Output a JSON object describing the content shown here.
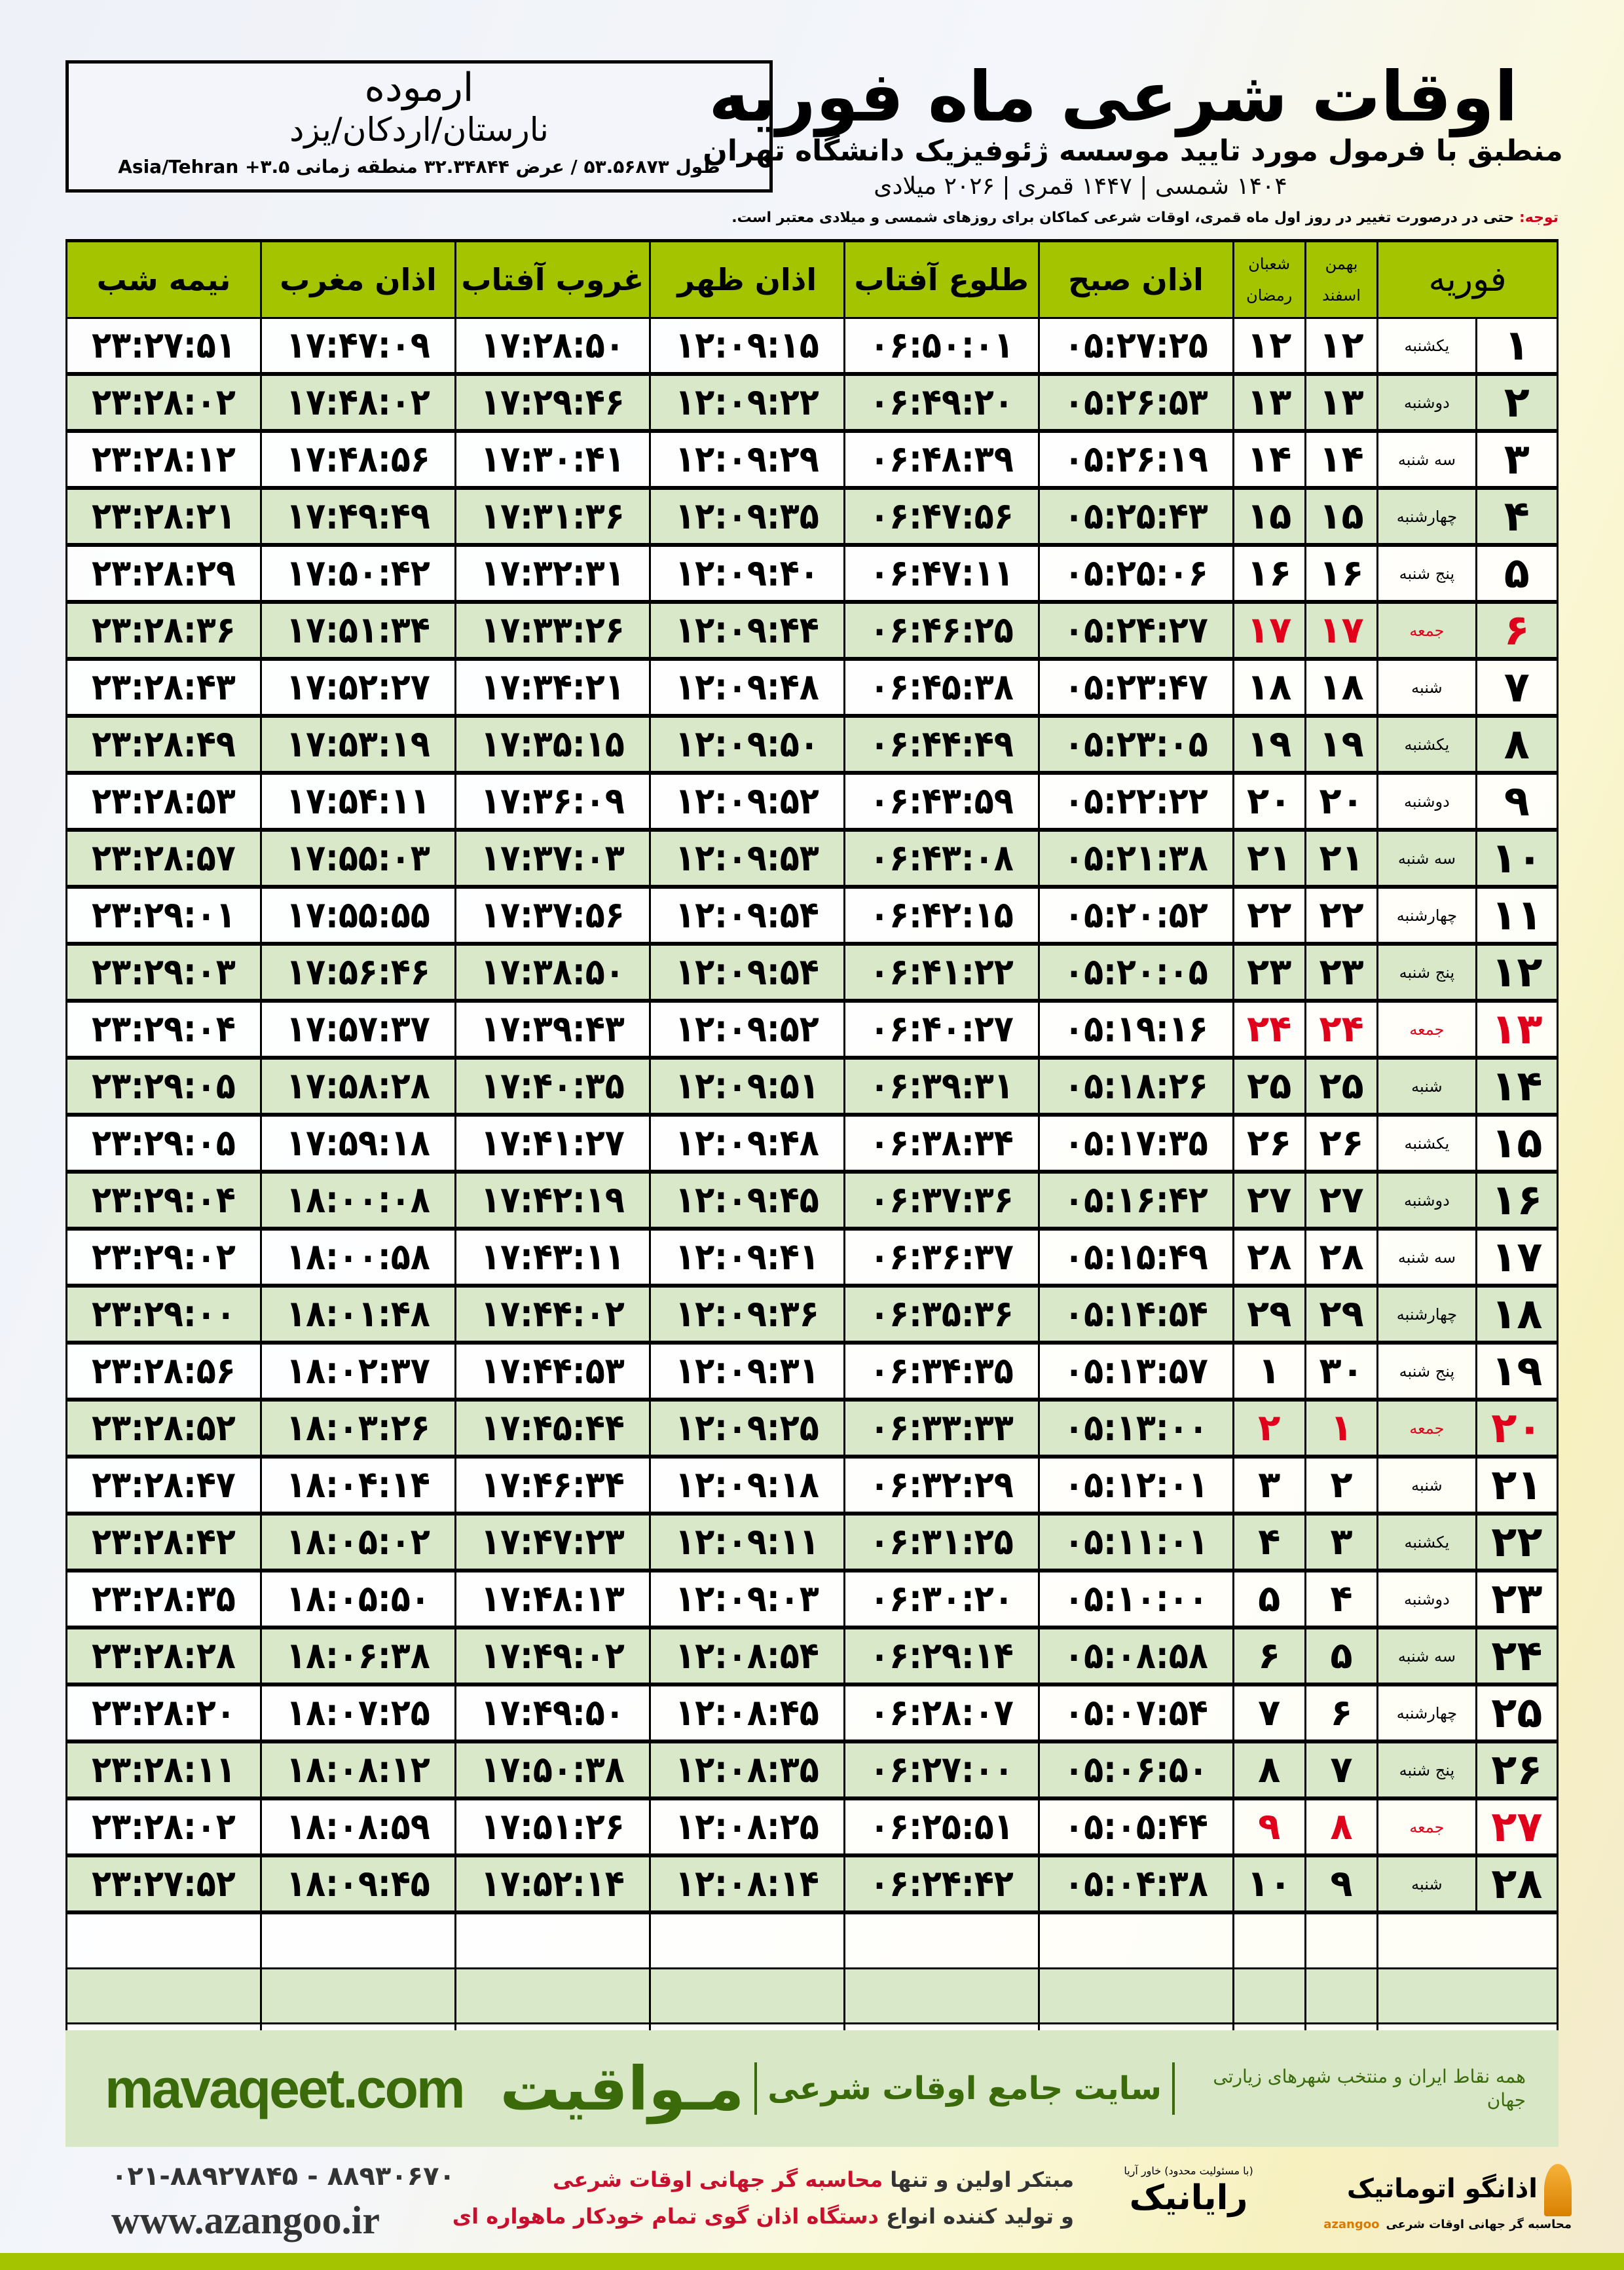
{
  "location": {
    "name": "ارموده",
    "path": "نارستان/اردکان/یزد",
    "coordinates": "طول ۵۳.۵۶۸۷۳ / عرض ۳۲.۳۴۸۴۴ منطقه زمانی ۳.۵+ Asia/Tehran"
  },
  "header": {
    "title": "اوقات شرعی ماه فوریه",
    "subtitle": "منطبق با فرمول مورد تایید موسسه ژئوفیزیک دانشگاه تهران",
    "years": "۱۴۰۴ شمسی | ۱۴۴۷ قمری | ۲۰۲۶ میلادی"
  },
  "note": {
    "label": "توجه:",
    "text": " حتی در درصورت تغییر در روز اول ماه قمری، اوقات شرعی کماکان برای روزهای شمسی و میلادی معتبر است."
  },
  "colors": {
    "header_green": "#a4c400",
    "row_green": "#d9e8c8",
    "holiday_red": "#e0001b",
    "brand_green": "#3a6a0a"
  },
  "table": {
    "columns": {
      "month": "فوریه",
      "solar_top": "بهمن",
      "solar_bottom": "اسفند",
      "lunar_top": "شعبان",
      "lunar_bottom": "رمضان",
      "fajr": "اذان صبح",
      "sunrise": "طلوع آفتاب",
      "dhuhr": "اذان ظهر",
      "sunset": "غروب آفتاب",
      "maghrib": "اذان مغرب",
      "midnight": "نیمه شب"
    },
    "holiday_weekday": "جمعه",
    "rows": [
      {
        "d": "۱",
        "w": "یکشنبه",
        "s": "۱۲",
        "q": "۱۲",
        "t": [
          "۰۵:۲۷:۲۵",
          "۰۶:۵۰:۰۱",
          "۱۲:۰۹:۱۵",
          "۱۷:۲۸:۵۰",
          "۱۷:۴۷:۰۹",
          "۲۳:۲۷:۵۱"
        ]
      },
      {
        "d": "۲",
        "w": "دوشنبه",
        "s": "۱۳",
        "q": "۱۳",
        "t": [
          "۰۵:۲۶:۵۳",
          "۰۶:۴۹:۲۰",
          "۱۲:۰۹:۲۲",
          "۱۷:۲۹:۴۶",
          "۱۷:۴۸:۰۲",
          "۲۳:۲۸:۰۲"
        ]
      },
      {
        "d": "۳",
        "w": "سه شنبه",
        "s": "۱۴",
        "q": "۱۴",
        "t": [
          "۰۵:۲۶:۱۹",
          "۰۶:۴۸:۳۹",
          "۱۲:۰۹:۲۹",
          "۱۷:۳۰:۴۱",
          "۱۷:۴۸:۵۶",
          "۲۳:۲۸:۱۲"
        ]
      },
      {
        "d": "۴",
        "w": "چهارشنبه",
        "s": "۱۵",
        "q": "۱۵",
        "t": [
          "۰۵:۲۵:۴۳",
          "۰۶:۴۷:۵۶",
          "۱۲:۰۹:۳۵",
          "۱۷:۳۱:۳۶",
          "۱۷:۴۹:۴۹",
          "۲۳:۲۸:۲۱"
        ]
      },
      {
        "d": "۵",
        "w": "پنج شنبه",
        "s": "۱۶",
        "q": "۱۶",
        "t": [
          "۰۵:۲۵:۰۶",
          "۰۶:۴۷:۱۱",
          "۱۲:۰۹:۴۰",
          "۱۷:۳۲:۳۱",
          "۱۷:۵۰:۴۲",
          "۲۳:۲۸:۲۹"
        ]
      },
      {
        "d": "۶",
        "w": "جمعه",
        "s": "۱۷",
        "q": "۱۷",
        "t": [
          "۰۵:۲۴:۲۷",
          "۰۶:۴۶:۲۵",
          "۱۲:۰۹:۴۴",
          "۱۷:۳۳:۲۶",
          "۱۷:۵۱:۳۴",
          "۲۳:۲۸:۳۶"
        ]
      },
      {
        "d": "۷",
        "w": "شنبه",
        "s": "۱۸",
        "q": "۱۸",
        "t": [
          "۰۵:۲۳:۴۷",
          "۰۶:۴۵:۳۸",
          "۱۲:۰۹:۴۸",
          "۱۷:۳۴:۲۱",
          "۱۷:۵۲:۲۷",
          "۲۳:۲۸:۴۳"
        ]
      },
      {
        "d": "۸",
        "w": "یکشنبه",
        "s": "۱۹",
        "q": "۱۹",
        "t": [
          "۰۵:۲۳:۰۵",
          "۰۶:۴۴:۴۹",
          "۱۲:۰۹:۵۰",
          "۱۷:۳۵:۱۵",
          "۱۷:۵۳:۱۹",
          "۲۳:۲۸:۴۹"
        ]
      },
      {
        "d": "۹",
        "w": "دوشنبه",
        "s": "۲۰",
        "q": "۲۰",
        "t": [
          "۰۵:۲۲:۲۲",
          "۰۶:۴۳:۵۹",
          "۱۲:۰۹:۵۲",
          "۱۷:۳۶:۰۹",
          "۱۷:۵۴:۱۱",
          "۲۳:۲۸:۵۳"
        ]
      },
      {
        "d": "۱۰",
        "w": "سه شنبه",
        "s": "۲۱",
        "q": "۲۱",
        "t": [
          "۰۵:۲۱:۳۸",
          "۰۶:۴۳:۰۸",
          "۱۲:۰۹:۵۳",
          "۱۷:۳۷:۰۳",
          "۱۷:۵۵:۰۳",
          "۲۳:۲۸:۵۷"
        ]
      },
      {
        "d": "۱۱",
        "w": "چهارشنبه",
        "s": "۲۲",
        "q": "۲۲",
        "t": [
          "۰۵:۲۰:۵۲",
          "۰۶:۴۲:۱۵",
          "۱۲:۰۹:۵۴",
          "۱۷:۳۷:۵۶",
          "۱۷:۵۵:۵۵",
          "۲۳:۲۹:۰۱"
        ]
      },
      {
        "d": "۱۲",
        "w": "پنج شنبه",
        "s": "۲۳",
        "q": "۲۳",
        "t": [
          "۰۵:۲۰:۰۵",
          "۰۶:۴۱:۲۲",
          "۱۲:۰۹:۵۴",
          "۱۷:۳۸:۵۰",
          "۱۷:۵۶:۴۶",
          "۲۳:۲۹:۰۳"
        ]
      },
      {
        "d": "۱۳",
        "w": "جمعه",
        "s": "۲۴",
        "q": "۲۴",
        "t": [
          "۰۵:۱۹:۱۶",
          "۰۶:۴۰:۲۷",
          "۱۲:۰۹:۵۲",
          "۱۷:۳۹:۴۳",
          "۱۷:۵۷:۳۷",
          "۲۳:۲۹:۰۴"
        ]
      },
      {
        "d": "۱۴",
        "w": "شنبه",
        "s": "۲۵",
        "q": "۲۵",
        "t": [
          "۰۵:۱۸:۲۶",
          "۰۶:۳۹:۳۱",
          "۱۲:۰۹:۵۱",
          "۱۷:۴۰:۳۵",
          "۱۷:۵۸:۲۸",
          "۲۳:۲۹:۰۵"
        ]
      },
      {
        "d": "۱۵",
        "w": "یکشنبه",
        "s": "۲۶",
        "q": "۲۶",
        "t": [
          "۰۵:۱۷:۳۵",
          "۰۶:۳۸:۳۴",
          "۱۲:۰۹:۴۸",
          "۱۷:۴۱:۲۷",
          "۱۷:۵۹:۱۸",
          "۲۳:۲۹:۰۵"
        ]
      },
      {
        "d": "۱۶",
        "w": "دوشنبه",
        "s": "۲۷",
        "q": "۲۷",
        "t": [
          "۰۵:۱۶:۴۲",
          "۰۶:۳۷:۳۶",
          "۱۲:۰۹:۴۵",
          "۱۷:۴۲:۱۹",
          "۱۸:۰۰:۰۸",
          "۲۳:۲۹:۰۴"
        ]
      },
      {
        "d": "۱۷",
        "w": "سه شنبه",
        "s": "۲۸",
        "q": "۲۸",
        "t": [
          "۰۵:۱۵:۴۹",
          "۰۶:۳۶:۳۷",
          "۱۲:۰۹:۴۱",
          "۱۷:۴۳:۱۱",
          "۱۸:۰۰:۵۸",
          "۲۳:۲۹:۰۲"
        ]
      },
      {
        "d": "۱۸",
        "w": "چهارشنبه",
        "s": "۲۹",
        "q": "۲۹",
        "t": [
          "۰۵:۱۴:۵۴",
          "۰۶:۳۵:۳۶",
          "۱۲:۰۹:۳۶",
          "۱۷:۴۴:۰۲",
          "۱۸:۰۱:۴۸",
          "۲۳:۲۹:۰۰"
        ]
      },
      {
        "d": "۱۹",
        "w": "پنج شنبه",
        "s": "۳۰",
        "q": "۱",
        "t": [
          "۰۵:۱۳:۵۷",
          "۰۶:۳۴:۳۵",
          "۱۲:۰۹:۳۱",
          "۱۷:۴۴:۵۳",
          "۱۸:۰۲:۳۷",
          "۲۳:۲۸:۵۶"
        ]
      },
      {
        "d": "۲۰",
        "w": "جمعه",
        "s": "۱",
        "q": "۲",
        "t": [
          "۰۵:۱۳:۰۰",
          "۰۶:۳۳:۳۳",
          "۱۲:۰۹:۲۵",
          "۱۷:۴۵:۴۴",
          "۱۸:۰۳:۲۶",
          "۲۳:۲۸:۵۲"
        ]
      },
      {
        "d": "۲۱",
        "w": "شنبه",
        "s": "۲",
        "q": "۳",
        "t": [
          "۰۵:۱۲:۰۱",
          "۰۶:۳۲:۲۹",
          "۱۲:۰۹:۱۸",
          "۱۷:۴۶:۳۴",
          "۱۸:۰۴:۱۴",
          "۲۳:۲۸:۴۷"
        ]
      },
      {
        "d": "۲۲",
        "w": "یکشنبه",
        "s": "۳",
        "q": "۴",
        "t": [
          "۰۵:۱۱:۰۱",
          "۰۶:۳۱:۲۵",
          "۱۲:۰۹:۱۱",
          "۱۷:۴۷:۲۳",
          "۱۸:۰۵:۰۲",
          "۲۳:۲۸:۴۲"
        ]
      },
      {
        "d": "۲۳",
        "w": "دوشنبه",
        "s": "۴",
        "q": "۵",
        "t": [
          "۰۵:۱۰:۰۰",
          "۰۶:۳۰:۲۰",
          "۱۲:۰۹:۰۳",
          "۱۷:۴۸:۱۳",
          "۱۸:۰۵:۵۰",
          "۲۳:۲۸:۳۵"
        ]
      },
      {
        "d": "۲۴",
        "w": "سه شنبه",
        "s": "۵",
        "q": "۶",
        "t": [
          "۰۵:۰۸:۵۸",
          "۰۶:۲۹:۱۴",
          "۱۲:۰۸:۵۴",
          "۱۷:۴۹:۰۲",
          "۱۸:۰۶:۳۸",
          "۲۳:۲۸:۲۸"
        ]
      },
      {
        "d": "۲۵",
        "w": "چهارشنبه",
        "s": "۶",
        "q": "۷",
        "t": [
          "۰۵:۰۷:۵۴",
          "۰۶:۲۸:۰۷",
          "۱۲:۰۸:۴۵",
          "۱۷:۴۹:۵۰",
          "۱۸:۰۷:۲۵",
          "۲۳:۲۸:۲۰"
        ]
      },
      {
        "d": "۲۶",
        "w": "پنج شنبه",
        "s": "۷",
        "q": "۸",
        "t": [
          "۰۵:۰۶:۵۰",
          "۰۶:۲۷:۰۰",
          "۱۲:۰۸:۳۵",
          "۱۷:۵۰:۳۸",
          "۱۸:۰۸:۱۲",
          "۲۳:۲۸:۱۱"
        ]
      },
      {
        "d": "۲۷",
        "w": "جمعه",
        "s": "۸",
        "q": "۹",
        "t": [
          "۰۵:۰۵:۴۴",
          "۰۶:۲۵:۵۱",
          "۱۲:۰۸:۲۵",
          "۱۷:۵۱:۲۶",
          "۱۸:۰۸:۵۹",
          "۲۳:۲۸:۰۲"
        ]
      },
      {
        "d": "۲۸",
        "w": "شنبه",
        "s": "۹",
        "q": "۱۰",
        "t": [
          "۰۵:۰۴:۳۸",
          "۰۶:۲۴:۴۲",
          "۱۲:۰۸:۱۴",
          "۱۷:۵۲:۱۴",
          "۱۸:۰۹:۴۵",
          "۲۳:۲۷:۵۲"
        ]
      }
    ]
  },
  "banner": {
    "brand": "مـواقیت",
    "slogan": "سایت جامع اوقات شرعی",
    "slogan2": "همه نقاط ایران و منتخب شهرهای زیارتی جهان",
    "site": "mavaqeet.com"
  },
  "footer": {
    "phones": "۰۲۱-۸۸۹۲۷۸۴۵ - ۸۸۹۳۰۶۷۰",
    "website": "www.azangoo.ir",
    "promo_line1_a": "مبتکر اولین و تنها ",
    "promo_line1_b": "محاسبه گر جهانی اوقات شرعی",
    "promo_line2_a": "و تولید کننده انواع ",
    "promo_line2_b": "دستگاه اذان گوی تمام خودکار ماهواره ای",
    "logo_rayanik": "رایانیک",
    "logo_rayanik_sub": "(با مسئولیت محدود) خاور آریا",
    "logo_azangoo": "اذانگو اتوماتیک",
    "logo_azangoo_sub": "محاسبه گر جهانی اوقات شرعی",
    "logo_azangoo_en": "azangoo"
  }
}
